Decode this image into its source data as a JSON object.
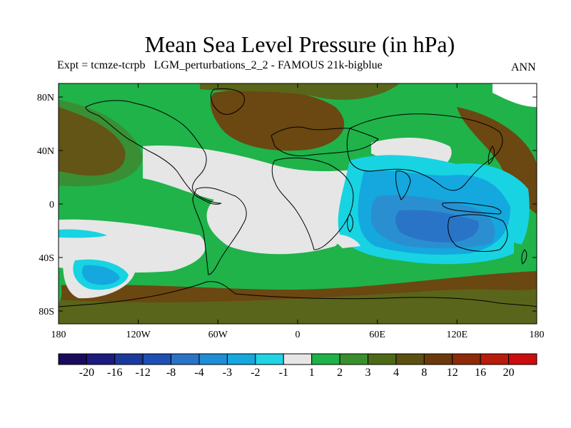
{
  "title": "Mean Sea Level Pressure (in hPa)",
  "subtitle": "Expt = tcmze-tcrpb   LGM_perturbations_2_2 - FAMOUS 21k-bigblue",
  "period": "ANN",
  "lat_labels": [
    "80N",
    "40N",
    "0",
    "40S",
    "80S"
  ],
  "lon_labels": [
    "180",
    "120W",
    "60W",
    "0",
    "60E",
    "120E",
    "180"
  ],
  "colorbar": {
    "colors": [
      "#1a0a5e",
      "#1c1c7e",
      "#1b3a9e",
      "#1e4fb4",
      "#2a74c8",
      "#1e8ed6",
      "#14a8df",
      "#1fd4e4",
      "#e6e6e6",
      "#1db348",
      "#3a8f2c",
      "#4c6a15",
      "#5c5010",
      "#6c3a0a",
      "#8e2a08",
      "#b81c0a",
      "#cc0d0d"
    ],
    "labels": [
      "-20",
      "-16",
      "-12",
      "-8",
      "-4",
      "-3",
      "-2",
      "-1",
      "1",
      "2",
      "3",
      "4",
      "8",
      "12",
      "16",
      "20"
    ]
  },
  "regions": {
    "brown": "#6b4711",
    "olive": "#59651a",
    "green": "#1fb34a",
    "grey": "#e6e6e6",
    "white": "#ffffff",
    "cyan": "#18d3e2",
    "cyan2": "#14a8df",
    "blue1": "#2a8fd0",
    "blue2": "#2a74c8"
  }
}
